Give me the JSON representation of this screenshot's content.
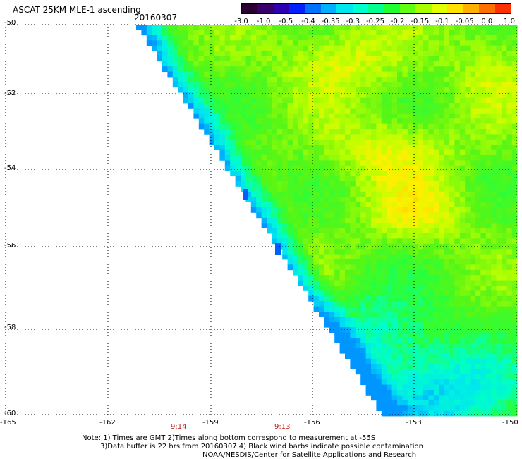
{
  "header": {
    "title": "ASCAT 25KM MLE-1 ascending",
    "date": "20160307"
  },
  "colorbar": {
    "colors": [
      "#2a0030",
      "#3a006a",
      "#2e00b0",
      "#0020ff",
      "#0070ff",
      "#00b0ff",
      "#00e6f0",
      "#00ffd0",
      "#00ff90",
      "#20ff30",
      "#60ff10",
      "#a8ff00",
      "#e0ff00",
      "#ffe000",
      "#ffb000",
      "#ff7000",
      "#ff3000"
    ],
    "tick_labels": [
      "-3.0",
      "-1.0",
      "-0.5",
      "-0.4",
      "-0.35",
      "-0.3",
      "-0.25",
      "-0.2",
      "-0.15",
      "-0.1",
      "-0.05",
      "0.0",
      "1.0"
    ]
  },
  "map": {
    "lat_labels": [
      "-50",
      "-52",
      "-54",
      "-56",
      "-58",
      "-60"
    ],
    "lon_labels": [
      "-165",
      "-162",
      "-159",
      "-156",
      "-153",
      "-150"
    ],
    "time_labels": [
      "9:14",
      "9:13"
    ],
    "value_range": [
      -3.0,
      1.0
    ]
  },
  "notes": {
    "line1": "Note: 1) Times are GMT 2)Times along bottom correspond to measurement at -55S",
    "line2": "3)Data buffer is 22 hrs from 20160307 4) Black wind barbs indicate possible contamination",
    "line3": "NOAA/NESDIS/Center for Satellite Applications and Research"
  }
}
